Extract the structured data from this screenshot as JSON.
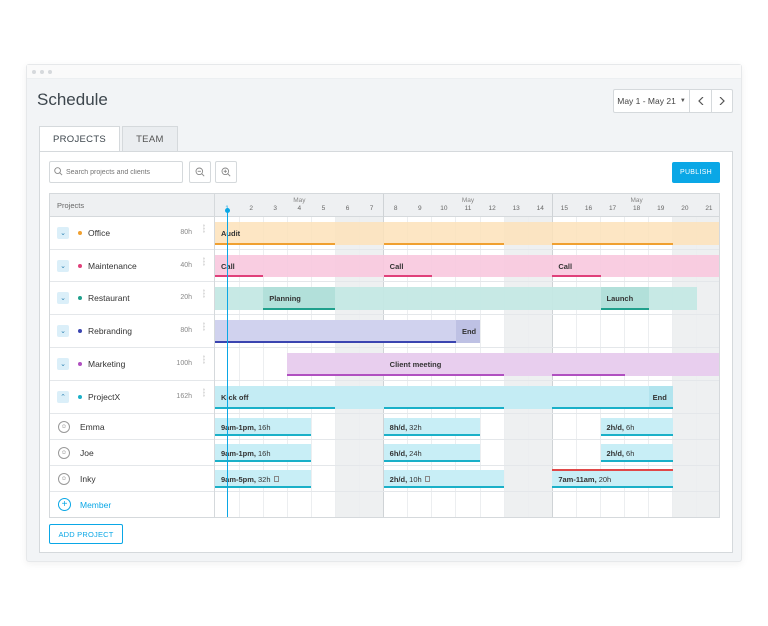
{
  "page": {
    "title": "Schedule"
  },
  "date_range": {
    "label": "May 1 - May 21",
    "prev_icon": "chevron-left-icon",
    "next_icon": "chevron-right-icon"
  },
  "tabs": [
    {
      "label": "PROJECTS",
      "active": true
    },
    {
      "label": "TEAM",
      "active": false
    }
  ],
  "toolbar": {
    "search_placeholder": "Search projects and clients",
    "zoom_out_icon": "zoom-out-icon",
    "zoom_in_icon": "zoom-in-icon",
    "publish_label": "PUBLISH"
  },
  "grid": {
    "projects_header": "Projects",
    "month_label": "May",
    "days": [
      "1",
      "2",
      "3",
      "4",
      "5",
      "6",
      "7",
      "8",
      "9",
      "10",
      "11",
      "12",
      "13",
      "14",
      "15",
      "16",
      "17",
      "18",
      "19",
      "20",
      "21"
    ]
  },
  "projects": [
    {
      "name": "Office",
      "hours": "80h",
      "color": "#f0a030",
      "expanded": false
    },
    {
      "name": "Maintenance",
      "hours": "40h",
      "color": "#e0407a",
      "expanded": false
    },
    {
      "name": "Restaurant",
      "hours": "20h",
      "color": "#1fa08c",
      "expanded": false
    },
    {
      "name": "Rebranding",
      "hours": "80h",
      "color": "#3a44b0",
      "expanded": false
    },
    {
      "name": "Marketing",
      "hours": "100h",
      "color": "#b050c0",
      "expanded": false
    },
    {
      "name": "ProjectX",
      "hours": "162h",
      "color": "#1ab0c8",
      "expanded": true
    }
  ],
  "bars": {
    "office": [
      "Audit"
    ],
    "maintenance": [
      "Call",
      "Call",
      "Call"
    ],
    "restaurant": [
      "Planning",
      "Launch"
    ],
    "rebranding": [
      "End"
    ],
    "marketing": [
      "Client meeting"
    ],
    "projectx": [
      "Kick off",
      "End"
    ]
  },
  "members": [
    {
      "name": "Emma",
      "avatar_icon": "user-avatar-icon",
      "assignments": [
        {
          "bold": "9am-1pm,",
          "rest": "16h"
        },
        {
          "bold": "8h/d,",
          "rest": "32h"
        },
        {
          "bold": "2h/d,",
          "rest": "6h"
        }
      ]
    },
    {
      "name": "Joe",
      "avatar_icon": "user-avatar-icon",
      "assignments": [
        {
          "bold": "9am-1pm,",
          "rest": "16h"
        },
        {
          "bold": "6h/d,",
          "rest": "24h"
        },
        {
          "bold": "2h/d,",
          "rest": "6h"
        }
      ]
    },
    {
      "name": "Inky",
      "avatar_icon": "user-avatar-icon",
      "assignments": [
        {
          "bold": "9am-5pm,",
          "rest": "32h"
        },
        {
          "bold": "2h/d,",
          "rest": "10h"
        },
        {
          "bold": "7am-11am,",
          "rest": "20h"
        }
      ]
    }
  ],
  "add_member_label": "Member",
  "add_project_label": "ADD PROJECT"
}
